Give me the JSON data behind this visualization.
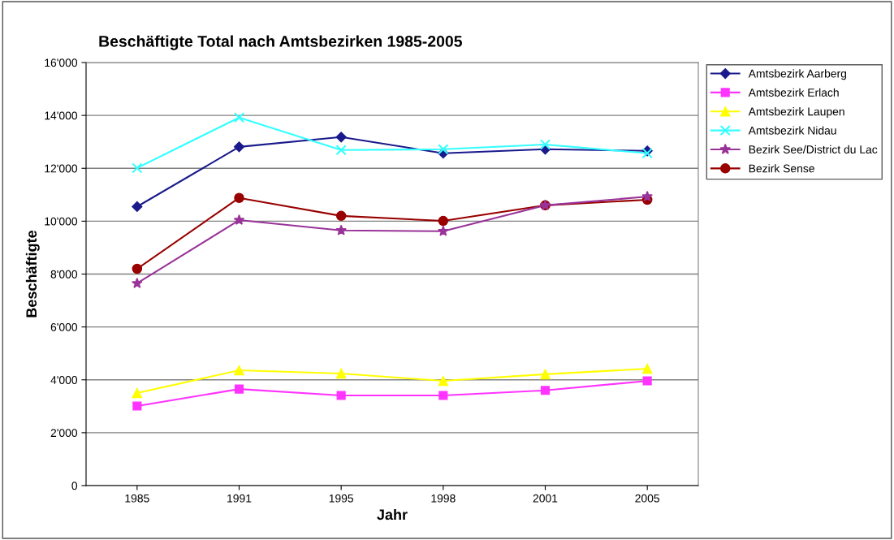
{
  "chart_data": {
    "type": "line",
    "title": "Beschäftigte Total nach Amtsbezirken 1985-2005",
    "xlabel": "Jahr",
    "ylabel": "Beschäftigte",
    "categories": [
      "1985",
      "1991",
      "1995",
      "1998",
      "2001",
      "2005"
    ],
    "series": [
      {
        "name": "Amtsbezirk Aarberg",
        "color": "#1a1a8c",
        "marker": "diamond",
        "values": [
          10550,
          12810,
          13180,
          12570,
          12720,
          12660
        ]
      },
      {
        "name": "Amtsbezirk Erlach",
        "color": "#ff33ff",
        "marker": "square",
        "values": [
          3010,
          3650,
          3410,
          3410,
          3600,
          3960
        ]
      },
      {
        "name": "Amtsbezirk Laupen",
        "color": "#ffff00",
        "marker": "triangle",
        "values": [
          3500,
          4360,
          4240,
          3960,
          4210,
          4420
        ]
      },
      {
        "name": "Amtsbezirk Nidau",
        "color": "#33ffff",
        "marker": "cross",
        "values": [
          12010,
          13920,
          12690,
          12720,
          12900,
          12570
        ]
      },
      {
        "name": "Bezirk See/District du Lac",
        "color": "#993399",
        "marker": "star",
        "values": [
          7650,
          10040,
          9650,
          9620,
          10600,
          10930
        ]
      },
      {
        "name": "Bezirk Sense",
        "color": "#990000",
        "marker": "circle",
        "values": [
          8200,
          10880,
          10200,
          10010,
          10600,
          10810
        ]
      }
    ],
    "ylim": [
      0,
      16000
    ],
    "yticks": [
      0,
      {
        "value": 2000,
        "label": "2'000"
      },
      {
        "value": 4000,
        "label": "4'000"
      },
      {
        "value": 6000,
        "label": "6'000"
      },
      {
        "value": 8000,
        "label": "8'000"
      },
      {
        "value": 10000,
        "label": "10'000"
      },
      {
        "value": 12000,
        "label": "12'000"
      },
      {
        "value": 14000,
        "label": "14'000"
      },
      {
        "value": 16000,
        "label": "16'000"
      }
    ],
    "grid": "y",
    "legend": "top right",
    "line_style": "solid"
  }
}
